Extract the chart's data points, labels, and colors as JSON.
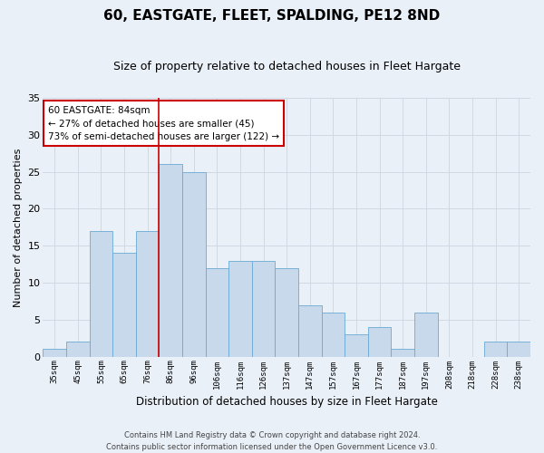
{
  "title": "60, EASTGATE, FLEET, SPALDING, PE12 8ND",
  "subtitle": "Size of property relative to detached houses in Fleet Hargate",
  "xlabel": "Distribution of detached houses by size in Fleet Hargate",
  "ylabel": "Number of detached properties",
  "bar_color": "#c8d9ec",
  "bar_edge_color": "#6aaad4",
  "categories": [
    "35sqm",
    "45sqm",
    "55sqm",
    "65sqm",
    "76sqm",
    "86sqm",
    "96sqm",
    "106sqm",
    "116sqm",
    "126sqm",
    "137sqm",
    "147sqm",
    "157sqm",
    "167sqm",
    "177sqm",
    "187sqm",
    "197sqm",
    "208sqm",
    "218sqm",
    "228sqm",
    "238sqm"
  ],
  "values": [
    1,
    2,
    17,
    14,
    17,
    26,
    25,
    12,
    13,
    13,
    12,
    7,
    6,
    3,
    4,
    1,
    6,
    0,
    0,
    2,
    2
  ],
  "ylim": [
    0,
    35
  ],
  "yticks": [
    0,
    5,
    10,
    15,
    20,
    25,
    30,
    35
  ],
  "red_line_x": 4.5,
  "marker_label_line1": "60 EASTGATE: 84sqm",
  "marker_label_line2": "← 27% of detached houses are smaller (45)",
  "marker_label_line3": "73% of semi-detached houses are larger (122) →",
  "footer1": "Contains HM Land Registry data © Crown copyright and database right 2024.",
  "footer2": "Contains public sector information licensed under the Open Government Licence v3.0.",
  "background_color": "#eaf0f8",
  "grid_color": "#d0d8e4",
  "annotation_box_color": "#ffffff",
  "annotation_border_color": "#cc0000",
  "red_line_color": "#cc0000",
  "title_fontsize": 11,
  "subtitle_fontsize": 9
}
